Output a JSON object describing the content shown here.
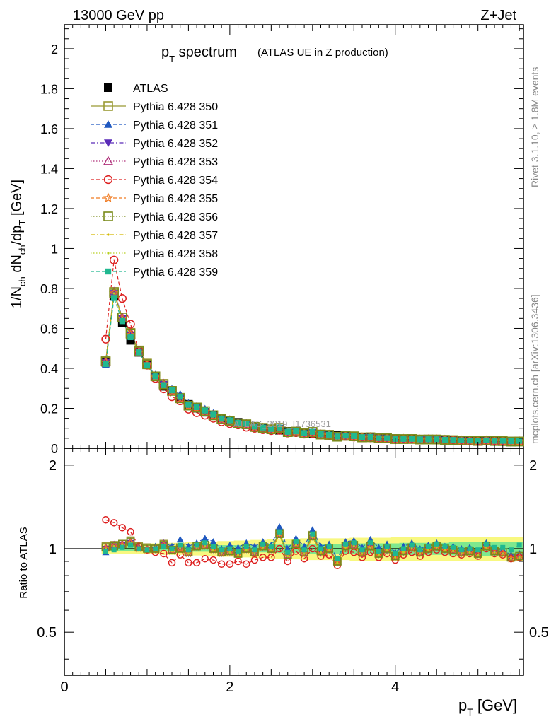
{
  "header": {
    "left": "13000 GeV pp",
    "right": "Z+Jet"
  },
  "plot_title": {
    "main": "p",
    "main_sub": "T",
    "main_rest": " spectrum",
    "note": "(ATLAS UE in Z production)"
  },
  "side_labels": {
    "rivet": "Rivet 3.1.10, ≥ 1.8M events",
    "mcplots": "mcplots.cern.ch [arXiv:1306.3436]"
  },
  "watermark": "ATLAS_2019_I1736531",
  "axes": {
    "ylabel_main": "1/N_ch dN_ch/dp_T [GeV]",
    "ylabel_ratio": "Ratio to ATLAS",
    "xlabel": "p_T [GeV]",
    "x_ticks": [
      "0",
      "2",
      "4"
    ],
    "y_ticks_main": [
      "0",
      "0.2",
      "0.4",
      "0.6",
      "0.8",
      "1",
      "1.2",
      "1.4",
      "1.6",
      "1.8",
      "2"
    ],
    "y_ticks_ratio": [
      "0.5",
      "1",
      "2"
    ]
  },
  "chart_data": {
    "type": "line",
    "xlim": [
      0,
      5.55
    ],
    "ylim_main": [
      0,
      2.12
    ],
    "ylim_ratio": [
      0.35,
      2.3
    ],
    "ratio_log_scale": true,
    "x": [
      0.5,
      0.6,
      0.7,
      0.8,
      0.9,
      1.0,
      1.1,
      1.2,
      1.3,
      1.4,
      1.5,
      1.6,
      1.7,
      1.8,
      1.9,
      2.0,
      2.1,
      2.2,
      2.3,
      2.4,
      2.5,
      2.6,
      2.7,
      2.8,
      2.9,
      3.0,
      3.1,
      3.2,
      3.3,
      3.4,
      3.5,
      3.6,
      3.7,
      3.8,
      3.9,
      4.0,
      4.1,
      4.2,
      4.3,
      4.4,
      4.5,
      4.6,
      4.7,
      4.8,
      4.9,
      5.0,
      5.1,
      5.2,
      5.3,
      5.4,
      5.5
    ],
    "atlas_values": [
      0.43,
      0.76,
      0.63,
      0.54,
      0.48,
      0.42,
      0.36,
      0.31,
      0.29,
      0.25,
      0.22,
      0.2,
      0.18,
      0.165,
      0.15,
      0.14,
      0.13,
      0.12,
      0.11,
      0.1,
      0.095,
      0.09,
      0.085,
      0.08,
      0.077,
      0.073,
      0.07,
      0.067,
      0.064,
      0.061,
      0.058,
      0.056,
      0.054,
      0.052,
      0.05,
      0.049,
      0.047,
      0.046,
      0.045,
      0.044,
      0.043,
      0.042,
      0.041,
      0.04,
      0.039,
      0.038,
      0.038,
      0.037,
      0.037,
      0.036,
      0.036
    ],
    "series": [
      {
        "name": "ATLAS",
        "color": "#000000",
        "marker": "filled-square",
        "line": "none",
        "ratios": [
          1,
          1,
          1,
          1,
          1,
          1,
          1,
          1,
          1,
          1,
          1,
          1,
          1,
          1,
          1,
          1,
          1,
          1,
          1,
          1,
          1,
          1,
          1,
          1,
          1,
          1,
          1,
          1,
          1,
          1,
          1,
          1,
          1,
          1,
          1,
          1,
          1,
          1,
          1,
          1,
          1,
          1,
          1,
          1,
          1,
          1,
          1,
          1,
          1,
          1,
          1
        ]
      },
      {
        "name": "Pythia 6.428 350",
        "color": "#999933",
        "marker": "open-square",
        "line": "solid",
        "ratios": [
          1.02,
          1.03,
          1.04,
          1.07,
          1.02,
          1.01,
          1.0,
          1.04,
          0.99,
          1.01,
          0.97,
          1.02,
          1.03,
          1.0,
          0.97,
          0.98,
          0.96,
          1.0,
          0.97,
          1.02,
          1.0,
          1.14,
          0.95,
          1.04,
          0.97,
          1.12,
          0.98,
          1.0,
          0.9,
          1.02,
          1.03,
          0.97,
          1.02,
          0.96,
          1.0,
          0.94,
          0.98,
          1.01,
          0.97,
          1.0,
          1.02,
          1.0,
          0.99,
          0.97,
          0.98,
          0.96,
          1.02,
          0.98,
          0.97,
          0.93,
          0.94
        ]
      },
      {
        "name": "Pythia 6.428 351",
        "color": "#1f58c0",
        "marker": "filled-triangle-up",
        "line": "dashed",
        "ratios": [
          0.97,
          1.03,
          1.04,
          1.06,
          1.01,
          1.0,
          1.02,
          1.05,
          1.02,
          1.08,
          1.02,
          1.05,
          1.09,
          1.06,
          1.0,
          1.03,
          1.01,
          1.05,
          1.02,
          1.06,
          1.03,
          1.2,
          1.0,
          1.09,
          1.02,
          1.17,
          1.02,
          1.04,
          0.92,
          1.06,
          1.07,
          1.01,
          1.08,
          1.01,
          1.04,
          0.97,
          1.02,
          1.05,
          1.0,
          1.03,
          1.05,
          1.02,
          1.02,
          1.0,
          1.01,
          0.98,
          1.05,
          1.0,
          0.99,
          0.95,
          0.96
        ]
      },
      {
        "name": "Pythia 6.428 352",
        "color": "#5a2bb8",
        "marker": "filled-triangle-down",
        "line": "dashdot",
        "ratios": [
          1.0,
          1.02,
          1.03,
          1.05,
          1.0,
          0.99,
          0.99,
          1.03,
          0.98,
          1.0,
          0.96,
          1.01,
          1.02,
          0.99,
          0.96,
          0.97,
          0.95,
          0.99,
          0.96,
          1.01,
          0.99,
          1.12,
          0.94,
          1.03,
          0.96,
          1.1,
          0.97,
          0.99,
          0.89,
          1.01,
          1.02,
          0.96,
          1.01,
          0.95,
          0.99,
          0.93,
          0.97,
          1.0,
          0.96,
          0.99,
          1.01,
          0.99,
          0.98,
          0.96,
          0.97,
          0.95,
          1.01,
          0.97,
          0.96,
          0.92,
          0.93
        ]
      },
      {
        "name": "Pythia 6.428 353",
        "color": "#b0307a",
        "marker": "open-triangle-up",
        "line": "dotted",
        "ratios": [
          1.01,
          1.03,
          1.04,
          1.06,
          1.01,
          1.0,
          1.0,
          1.04,
          0.99,
          1.01,
          0.97,
          1.02,
          1.03,
          1.0,
          0.97,
          0.98,
          0.96,
          1.0,
          0.97,
          1.02,
          1.0,
          1.13,
          0.95,
          1.04,
          0.97,
          1.11,
          0.98,
          1.0,
          0.9,
          1.02,
          1.03,
          0.97,
          1.02,
          0.96,
          1.0,
          0.94,
          0.98,
          1.01,
          0.97,
          1.0,
          1.02,
          1.0,
          0.99,
          0.97,
          0.98,
          0.96,
          1.02,
          0.98,
          0.97,
          0.93,
          0.94
        ]
      },
      {
        "name": "Pythia 6.428 354",
        "color": "#dd2020",
        "marker": "open-circle",
        "line": "dashed",
        "ratios": [
          1.27,
          1.24,
          1.19,
          1.15,
          1.02,
          0.99,
          0.97,
          0.96,
          0.89,
          0.95,
          0.89,
          0.89,
          0.92,
          0.91,
          0.88,
          0.88,
          0.9,
          0.88,
          0.91,
          0.93,
          0.93,
          1.0,
          0.9,
          0.98,
          0.92,
          1.0,
          0.94,
          0.95,
          0.87,
          0.98,
          0.97,
          0.93,
          0.97,
          0.93,
          0.96,
          0.91,
          0.95,
          0.97,
          0.94,
          0.97,
          0.99,
          0.97,
          0.96,
          0.95,
          0.96,
          0.94,
          1.0,
          0.96,
          0.95,
          0.92,
          0.93
        ]
      },
      {
        "name": "Pythia 6.428 355",
        "color": "#f07a20",
        "marker": "open-star",
        "line": "dashed",
        "ratios": [
          1.0,
          1.02,
          1.03,
          1.05,
          1.0,
          0.99,
          0.99,
          1.03,
          0.98,
          1.0,
          0.96,
          1.01,
          1.02,
          0.99,
          0.96,
          0.97,
          0.95,
          0.99,
          0.96,
          1.01,
          0.99,
          1.12,
          0.94,
          1.03,
          0.96,
          1.1,
          0.97,
          0.99,
          0.89,
          1.01,
          1.02,
          0.96,
          1.01,
          0.95,
          0.99,
          0.93,
          0.97,
          1.0,
          0.96,
          0.99,
          1.01,
          0.99,
          0.98,
          0.96,
          0.97,
          0.95,
          1.01,
          0.97,
          0.96,
          0.92,
          0.93
        ]
      },
      {
        "name": "Pythia 6.428 356",
        "color": "#7a8a1a",
        "marker": "open-square",
        "line": "dotted",
        "ratios": [
          1.01,
          1.02,
          1.04,
          1.06,
          1.01,
          1.0,
          1.0,
          1.03,
          0.99,
          1.0,
          0.97,
          1.02,
          1.03,
          1.0,
          0.97,
          0.98,
          0.96,
          1.0,
          0.97,
          1.02,
          1.0,
          1.13,
          0.95,
          1.04,
          0.97,
          1.11,
          0.98,
          1.0,
          0.9,
          1.02,
          1.03,
          0.97,
          1.02,
          0.96,
          1.0,
          0.94,
          0.98,
          1.01,
          0.97,
          1.0,
          1.02,
          1.0,
          0.99,
          0.97,
          0.98,
          0.96,
          1.02,
          0.98,
          0.97,
          0.93,
          0.94
        ]
      },
      {
        "name": "Pythia 6.428 357",
        "color": "#d4b800",
        "marker": "small-dot",
        "line": "dashdot",
        "ratios": [
          1.0,
          1.02,
          1.03,
          1.05,
          1.0,
          0.99,
          0.99,
          1.03,
          0.98,
          1.0,
          0.96,
          1.01,
          1.02,
          0.99,
          0.96,
          0.97,
          0.95,
          0.99,
          0.96,
          1.01,
          0.99,
          1.12,
          0.94,
          1.03,
          0.96,
          1.1,
          0.97,
          0.99,
          0.89,
          1.01,
          1.02,
          0.96,
          1.01,
          0.95,
          0.99,
          0.93,
          0.97,
          1.0,
          0.96,
          0.99,
          1.01,
          0.99,
          0.98,
          0.96,
          0.97,
          0.95,
          1.01,
          0.97,
          0.96,
          0.92,
          0.93
        ]
      },
      {
        "name": "Pythia 6.428 358",
        "color": "#b8d020",
        "marker": "small-dot",
        "line": "dotted",
        "ratios": [
          1.0,
          1.02,
          1.03,
          1.05,
          1.0,
          0.99,
          0.99,
          1.03,
          0.98,
          1.0,
          0.96,
          1.01,
          1.02,
          0.99,
          0.96,
          0.97,
          0.95,
          0.99,
          0.96,
          1.01,
          0.99,
          1.12,
          0.94,
          1.03,
          0.96,
          1.1,
          0.97,
          0.99,
          0.89,
          1.01,
          1.02,
          0.96,
          1.01,
          0.95,
          0.99,
          0.93,
          0.97,
          1.0,
          0.96,
          0.99,
          1.01,
          0.99,
          0.98,
          0.96,
          0.97,
          0.95,
          1.01,
          0.97,
          0.96,
          0.92,
          0.93
        ]
      },
      {
        "name": "Pythia 6.428 359",
        "color": "#20b890",
        "marker": "filled-square-small",
        "line": "dashed",
        "ratios": [
          0.98,
          0.99,
          1.01,
          1.03,
          1.0,
          0.99,
          1.0,
          1.02,
          1.0,
          1.03,
          0.99,
          1.03,
          1.05,
          1.02,
          0.99,
          1.0,
          0.98,
          1.02,
          0.99,
          1.04,
          1.02,
          1.15,
          0.97,
          1.06,
          0.99,
          1.13,
          1.0,
          1.02,
          0.92,
          1.04,
          1.05,
          0.99,
          1.05,
          0.98,
          1.02,
          0.96,
          1.0,
          1.03,
          0.99,
          1.02,
          1.04,
          1.02,
          1.01,
          0.99,
          1.0,
          0.99,
          1.04,
          1.01,
          1.01,
          0.99,
          1.03
        ]
      }
    ],
    "uncertainty_band": {
      "inner_color": "#7ee88e",
      "outer_color": "#f8f880",
      "inner_halfwidth": [
        0.02,
        0.02,
        0.02,
        0.02,
        0.02,
        0.02,
        0.02,
        0.02,
        0.02,
        0.02,
        0.025,
        0.025,
        0.025,
        0.025,
        0.03,
        0.03,
        0.03,
        0.03,
        0.03,
        0.03,
        0.035,
        0.035,
        0.035,
        0.035,
        0.035,
        0.04,
        0.04,
        0.04,
        0.04,
        0.04,
        0.04,
        0.045,
        0.045,
        0.045,
        0.045,
        0.045,
        0.05,
        0.05,
        0.05,
        0.05,
        0.05,
        0.05,
        0.055,
        0.055,
        0.055,
        0.055,
        0.06,
        0.06,
        0.06,
        0.06,
        0.06
      ],
      "outer_halfwidth": [
        0.04,
        0.04,
        0.04,
        0.04,
        0.04,
        0.045,
        0.045,
        0.05,
        0.05,
        0.05,
        0.055,
        0.055,
        0.06,
        0.06,
        0.065,
        0.065,
        0.07,
        0.07,
        0.075,
        0.075,
        0.08,
        0.08,
        0.085,
        0.085,
        0.09,
        0.09,
        0.09,
        0.09,
        0.09,
        0.09,
        0.095,
        0.095,
        0.095,
        0.095,
        0.095,
        0.1,
        0.1,
        0.1,
        0.1,
        0.1,
        0.1,
        0.1,
        0.1,
        0.1,
        0.1,
        0.1,
        0.1,
        0.1,
        0.1,
        0.1,
        0.1
      ]
    }
  }
}
